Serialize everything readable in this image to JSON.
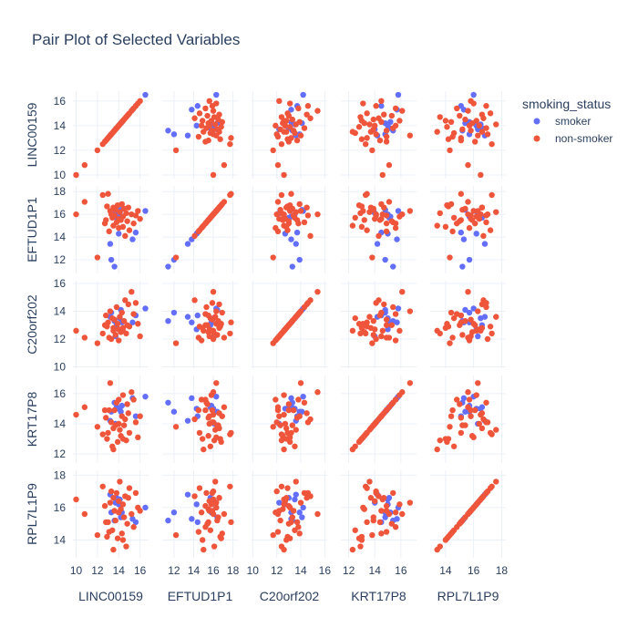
{
  "chart_data": {
    "type": "scatter",
    "title": "Pair Plot of Selected Variables",
    "variables": [
      "LINC00159",
      "EFTUD1P1",
      "C20orf202",
      "KRT17P8",
      "RPL7L1P9"
    ],
    "ranges": {
      "LINC00159": [
        9.7,
        16.8
      ],
      "EFTUD1P1": [
        10.8,
        18.5
      ],
      "C20orf202": [
        9.9,
        16.2
      ],
      "KRT17P8": [
        11.4,
        17.2
      ],
      "RPL7L1P9": [
        12.9,
        18.3
      ]
    },
    "ticks": {
      "LINC00159": [
        10,
        12,
        14,
        16
      ],
      "EFTUD1P1": [
        12,
        14,
        16,
        18
      ],
      "C20orf202": [
        10,
        12,
        14,
        16
      ],
      "KRT17P8": [
        12,
        14,
        16
      ],
      "RPL7L1P9": [
        14,
        16,
        18
      ]
    },
    "grid": true,
    "legend": {
      "title": "smoking_status",
      "position": "top-right"
    },
    "series": [
      {
        "name": "smoker",
        "color": "#636efa",
        "points": [
          {
            "LINC00159": 16.5,
            "EFTUD1P1": 16.3,
            "C20orf202": 14.2,
            "KRT17P8": 15.8,
            "RPL7L1P9": 16.0
          },
          {
            "LINC00159": 15.3,
            "EFTUD1P1": 13.8,
            "C20orf202": 13.2,
            "KRT17P8": 15.7,
            "RPL7L1P9": 15.3
          },
          {
            "LINC00159": 15.6,
            "EFTUD1P1": 14.4,
            "C20orf202": 13.7,
            "KRT17P8": 14.5,
            "RPL7L1P9": 15.1
          },
          {
            "LINC00159": 14.1,
            "EFTUD1P1": 16.0,
            "C20orf202": 13.5,
            "KRT17P8": 15.0,
            "RPL7L1P9": 16.5
          },
          {
            "LINC00159": 13.8,
            "EFTUD1P1": 15.7,
            "C20orf202": 13.0,
            "KRT17P8": 15.1,
            "RPL7L1P9": 16.6
          },
          {
            "LINC00159": 14.2,
            "EFTUD1P1": 16.4,
            "C20orf202": 14.1,
            "KRT17P8": 14.8,
            "RPL7L1P9": 15.4
          },
          {
            "LINC00159": 13.3,
            "EFTUD1P1": 12.0,
            "C20orf202": 13.9,
            "KRT17P8": 14.8,
            "RPL7L1P9": 15.7
          },
          {
            "LINC00159": 13.6,
            "EFTUD1P1": 11.4,
            "C20orf202": 13.3,
            "KRT17P8": 15.4,
            "RPL7L1P9": 15.2
          },
          {
            "LINC00159": 13.2,
            "EFTUD1P1": 13.4,
            "C20orf202": 13.6,
            "KRT17P8": 14.2,
            "RPL7L1P9": 16.8
          },
          {
            "LINC00159": 13.7,
            "EFTUD1P1": 16.1,
            "C20orf202": 12.2,
            "KRT17P8": 14.0,
            "RPL7L1P9": 16.3
          },
          {
            "LINC00159": 14.3,
            "EFTUD1P1": 15.8,
            "C20orf202": 13.2,
            "KRT17P8": 15.2,
            "RPL7L1P9": 15.7
          },
          {
            "LINC00159": 14.0,
            "EFTUD1P1": 14.3,
            "C20orf202": 12.7,
            "KRT17P8": 15.0,
            "RPL7L1P9": 16.2
          }
        ]
      },
      {
        "name": "non-smoker",
        "color": "#ef553b",
        "points": [
          {
            "LINC00159": 10.0,
            "EFTUD1P1": 16.0,
            "C20orf202": 12.6,
            "KRT17P8": 14.6,
            "RPL7L1P9": 16.5
          },
          {
            "LINC00159": 10.8,
            "EFTUD1P1": 17.1,
            "C20orf202": 12.1,
            "KRT17P8": 15.1,
            "RPL7L1P9": 15.6
          },
          {
            "LINC00159": 12.0,
            "EFTUD1P1": 12.2,
            "C20orf202": 11.7,
            "KRT17P8": 13.8,
            "RPL7L1P9": 14.3
          },
          {
            "LINC00159": 12.5,
            "EFTUD1P1": 17.7,
            "C20orf202": 12.4,
            "KRT17P8": 13.3,
            "RPL7L1P9": 17.3
          },
          {
            "LINC00159": 12.7,
            "EFTUD1P1": 15.2,
            "C20orf202": 13.0,
            "KRT17P8": 14.9,
            "RPL7L1P9": 16.1
          },
          {
            "LINC00159": 12.9,
            "EFTUD1P1": 16.7,
            "C20orf202": 12.9,
            "KRT17P8": 13.0,
            "RPL7L1P9": 14.2
          },
          {
            "LINC00159": 13.0,
            "EFTUD1P1": 17.8,
            "C20orf202": 13.2,
            "KRT17P8": 13.4,
            "RPL7L1P9": 15.1
          },
          {
            "LINC00159": 13.2,
            "EFTUD1P1": 16.3,
            "C20orf202": 14.0,
            "KRT17P8": 16.7,
            "RPL7L1P9": 16.3
          },
          {
            "LINC00159": 13.3,
            "EFTUD1P1": 16.0,
            "C20orf202": 12.0,
            "KRT17P8": 14.1,
            "RPL7L1P9": 17.0
          },
          {
            "LINC00159": 13.4,
            "EFTUD1P1": 15.7,
            "C20orf202": 13.5,
            "KRT17P8": 12.5,
            "RPL7L1P9": 14.6
          },
          {
            "LINC00159": 13.5,
            "EFTUD1P1": 16.6,
            "C20orf202": 12.8,
            "KRT17P8": 13.7,
            "RPL7L1P9": 16.6
          },
          {
            "LINC00159": 13.6,
            "EFTUD1P1": 15.9,
            "C20orf202": 13.4,
            "KRT17P8": 14.9,
            "RPL7L1P9": 15.8
          },
          {
            "LINC00159": 13.7,
            "EFTUD1P1": 16.4,
            "C20orf202": 12.3,
            "KRT17P8": 13.9,
            "RPL7L1P9": 15.2
          },
          {
            "LINC00159": 13.8,
            "EFTUD1P1": 15.3,
            "C20orf202": 14.3,
            "KRT17P8": 15.4,
            "RPL7L1P9": 16.9
          },
          {
            "LINC00159": 13.9,
            "EFTUD1P1": 16.8,
            "C20orf202": 13.1,
            "KRT17P8": 12.8,
            "RPL7L1P9": 14.1
          },
          {
            "LINC00159": 14.0,
            "EFTUD1P1": 15.6,
            "C20orf202": 12.7,
            "KRT17P8": 14.0,
            "RPL7L1P9": 16.4
          },
          {
            "LINC00159": 14.0,
            "EFTUD1P1": 14.8,
            "C20orf202": 11.9,
            "KRT17P8": 15.6,
            "RPL7L1P9": 15.7
          },
          {
            "LINC00159": 14.1,
            "EFTUD1P1": 16.2,
            "C20orf202": 13.6,
            "KRT17P8": 13.6,
            "RPL7L1P9": 17.6
          },
          {
            "LINC00159": 14.2,
            "EFTUD1P1": 15.5,
            "C20orf202": 12.5,
            "KRT17P8": 13.2,
            "RPL7L1P9": 15.9
          },
          {
            "LINC00159": 14.3,
            "EFTUD1P1": 16.9,
            "C20orf202": 13.9,
            "KRT17P8": 14.5,
            "RPL7L1P9": 14.4
          },
          {
            "LINC00159": 14.4,
            "EFTUD1P1": 15.8,
            "C20orf202": 12.6,
            "KRT17P8": 15.9,
            "RPL7L1P9": 16.2
          },
          {
            "LINC00159": 14.5,
            "EFTUD1P1": 16.5,
            "C20orf202": 13.3,
            "KRT17P8": 13.9,
            "RPL7L1P9": 15.4
          },
          {
            "LINC00159": 14.6,
            "EFTUD1P1": 14.1,
            "C20orf202": 14.8,
            "KRT17P8": 14.3,
            "RPL7L1P9": 16.7
          },
          {
            "LINC00159": 14.7,
            "EFTUD1P1": 16.1,
            "C20orf202": 12.4,
            "KRT17P8": 12.9,
            "RPL7L1P9": 13.6
          },
          {
            "LINC00159": 14.8,
            "EFTUD1P1": 15.4,
            "C20orf202": 13.0,
            "KRT17P8": 15.3,
            "RPL7L1P9": 15.0
          },
          {
            "LINC00159": 14.9,
            "EFTUD1P1": 16.6,
            "C20orf202": 14.5,
            "KRT17P8": 14.7,
            "RPL7L1P9": 16.6
          },
          {
            "LINC00159": 15.0,
            "EFTUD1P1": 14.6,
            "C20orf202": 12.9,
            "KRT17P8": 13.4,
            "RPL7L1P9": 17.2
          },
          {
            "LINC00159": 15.2,
            "EFTUD1P1": 16.0,
            "C20orf202": 15.4,
            "KRT17P8": 16.1,
            "RPL7L1P9": 15.6
          },
          {
            "LINC00159": 15.4,
            "EFTUD1P1": 15.2,
            "C20orf202": 13.8,
            "KRT17P8": 15.6,
            "RPL7L1P9": 14.8
          },
          {
            "LINC00159": 15.6,
            "EFTUD1P1": 15.9,
            "C20orf202": 14.6,
            "KRT17P8": 14.1,
            "RPL7L1P9": 16.9
          },
          {
            "LINC00159": 15.8,
            "EFTUD1P1": 16.3,
            "C20orf202": 13.1,
            "KRT17P8": 13.1,
            "RPL7L1P9": 16.0
          },
          {
            "LINC00159": 16.0,
            "EFTUD1P1": 15.6,
            "C20orf202": 12.2,
            "KRT17P8": 14.5,
            "RPL7L1P9": 15.8
          },
          {
            "LINC00159": 13.1,
            "EFTUD1P1": 14.5,
            "C20orf202": 12.1,
            "KRT17P8": 14.9,
            "RPL7L1P9": 14.5
          },
          {
            "LINC00159": 13.5,
            "EFTUD1P1": 15.0,
            "C20orf202": 12.6,
            "KRT17P8": 12.3,
            "RPL7L1P9": 13.4
          },
          {
            "LINC00159": 14.4,
            "EFTUD1P1": 14.9,
            "C20orf202": 12.8,
            "KRT17P8": 13.0,
            "RPL7L1P9": 14.0
          },
          {
            "LINC00159": 12.8,
            "EFTUD1P1": 15.5,
            "C20orf202": 13.7,
            "KRT17P8": 14.4,
            "RPL7L1P9": 15.1
          }
        ]
      }
    ]
  }
}
